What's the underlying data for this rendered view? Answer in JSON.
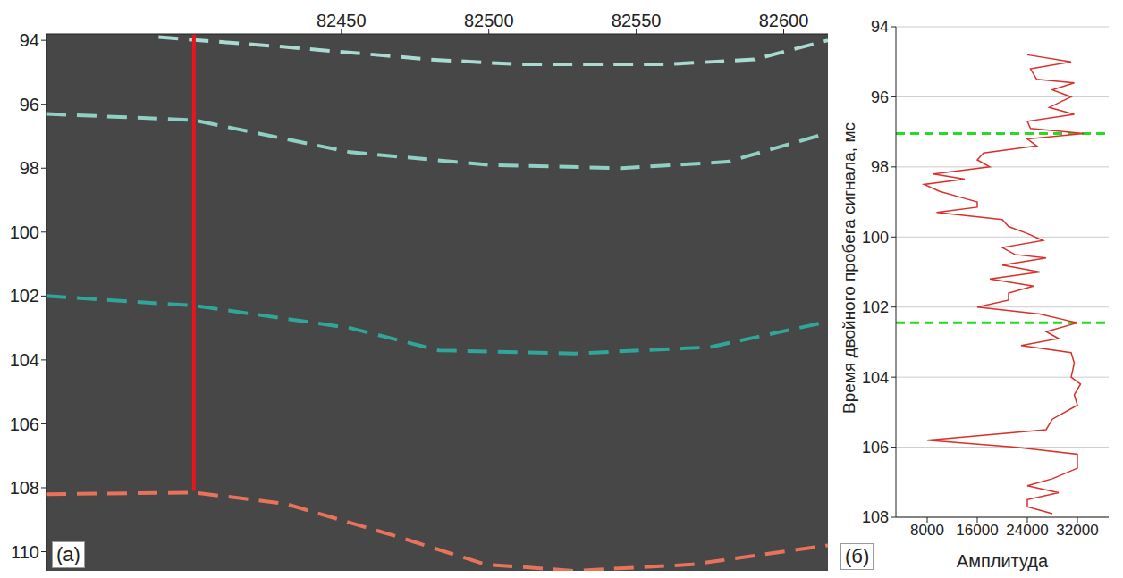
{
  "chart_data": [
    {
      "type": "line",
      "panel_label": "(a)",
      "xlim": [
        82350,
        82615
      ],
      "xticks": [
        82450,
        82500,
        82550,
        82600
      ],
      "ylim": [
        93.8,
        110.6
      ],
      "yticks": [
        94,
        96,
        98,
        100,
        102,
        104,
        106,
        108,
        110
      ],
      "grid": false,
      "series": [
        {
          "color": "#a9dbd2",
          "line_style": "dashed",
          "x": [
            82388,
            82430,
            82480,
            82510,
            82560,
            82590,
            82615
          ],
          "values": [
            93.9,
            94.2,
            94.6,
            94.75,
            94.75,
            94.6,
            94.0
          ]
        },
        {
          "color": "#8fcfc4",
          "line_style": "dashed",
          "x": [
            82350,
            82400,
            82453,
            82500,
            82545,
            82581,
            82615
          ],
          "values": [
            96.3,
            96.5,
            97.5,
            97.9,
            98.0,
            97.8,
            96.9
          ]
        },
        {
          "color": "#2fa699",
          "line_style": "dashed",
          "x": [
            82350,
            82400,
            82453,
            82483,
            82529,
            82575,
            82615
          ],
          "values": [
            102.0,
            102.3,
            103.0,
            103.7,
            103.8,
            103.6,
            102.8
          ]
        },
        {
          "color": "#e8735a",
          "line_style": "dashed",
          "x": [
            82350,
            82400,
            82431,
            82468,
            82499,
            82529,
            82569,
            82615
          ],
          "values": [
            108.2,
            108.15,
            108.5,
            109.5,
            110.4,
            110.6,
            110.4,
            109.8
          ]
        },
        {
          "color": "#e8161b",
          "line_style": "solid",
          "x": [
            82400,
            82400
          ],
          "values": [
            93.8,
            108.1
          ]
        }
      ]
    },
    {
      "type": "line",
      "panel_label": "(б)",
      "x_label": "Амплитуда",
      "y_label": "Время двойного пробега сигнала, мс",
      "xlim": [
        3000,
        37000
      ],
      "xticks": [
        8000,
        16000,
        24000,
        32000
      ],
      "ylim": [
        94,
        108
      ],
      "yticks": [
        94,
        96,
        98,
        100,
        102,
        104,
        106,
        108
      ],
      "grid": true,
      "hlines": [
        {
          "value": 97.05,
          "color": "#22dd22"
        },
        {
          "value": 102.45,
          "color": "#22dd22"
        }
      ],
      "series": [
        {
          "color": "#d9302a",
          "line_style": "solid",
          "x": [
            24000,
            31000,
            24500,
            25500,
            31500,
            28000,
            31000,
            27500,
            31500,
            24000,
            24500,
            33000,
            24000,
            25500,
            17000,
            16000,
            18000,
            9000,
            14000,
            7500,
            10000,
            14000,
            16000,
            16000,
            9500,
            20000,
            21000,
            24000,
            26500,
            20000,
            22000,
            27000,
            20000,
            26000,
            18000,
            25000,
            21000,
            21000,
            16000,
            26000,
            32000,
            27000,
            29000,
            23000,
            31000,
            31500,
            31000,
            32500,
            31500,
            32000,
            28000,
            27000,
            8000,
            22000,
            32000,
            32000,
            28000,
            24000,
            29000,
            24000,
            24000,
            28000
          ],
          "values": [
            94.8,
            95.0,
            95.2,
            95.5,
            95.6,
            95.8,
            96.0,
            96.3,
            96.5,
            96.7,
            96.9,
            97.05,
            97.2,
            97.4,
            97.6,
            97.8,
            98.0,
            98.2,
            98.35,
            98.5,
            98.7,
            98.9,
            99.0,
            99.15,
            99.3,
            99.5,
            99.7,
            99.9,
            100.1,
            100.3,
            100.5,
            100.6,
            100.8,
            101.0,
            101.2,
            101.4,
            101.6,
            101.8,
            102.0,
            102.2,
            102.45,
            102.7,
            102.9,
            103.1,
            103.3,
            103.6,
            104.0,
            104.2,
            104.5,
            104.8,
            105.2,
            105.5,
            105.8,
            106.0,
            106.2,
            106.6,
            106.9,
            107.1,
            107.3,
            107.5,
            107.7,
            107.9
          ]
        }
      ]
    }
  ]
}
